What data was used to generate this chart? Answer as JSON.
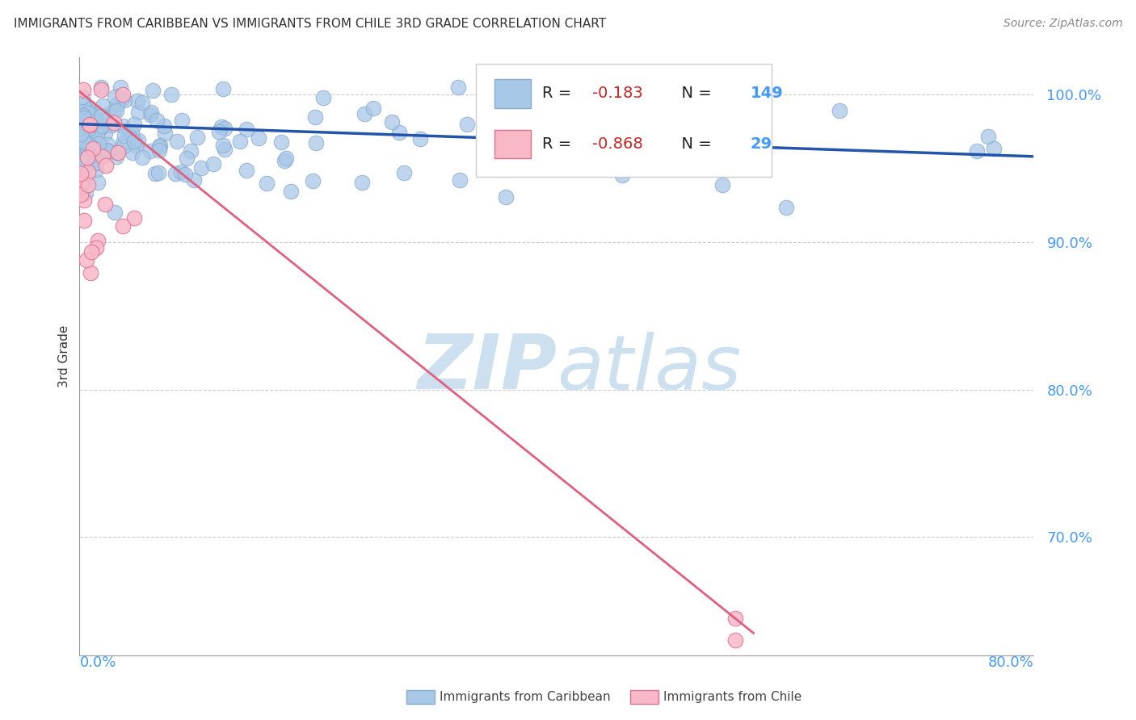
{
  "title": "IMMIGRANTS FROM CARIBBEAN VS IMMIGRANTS FROM CHILE 3RD GRADE CORRELATION CHART",
  "source": "Source: ZipAtlas.com",
  "ylabel": "3rd Grade",
  "yticks_labels": [
    "100.0%",
    "90.0%",
    "80.0%",
    "70.0%"
  ],
  "ytick_vals": [
    1.0,
    0.9,
    0.8,
    0.7
  ],
  "xlim": [
    0.0,
    0.8
  ],
  "ylim": [
    0.62,
    1.025
  ],
  "legend_blue_label": "Immigrants from Caribbean",
  "legend_pink_label": "Immigrants from Chile",
  "R_blue": -0.183,
  "N_blue": 149,
  "R_pink": -0.868,
  "N_pink": 29,
  "blue_color": "#a8c8e8",
  "blue_edge_color": "#88aacc",
  "blue_line_color": "#2255aa",
  "pink_color": "#f8b8c8",
  "pink_edge_color": "#e07090",
  "pink_line_color": "#e06080",
  "background_color": "#ffffff",
  "title_fontsize": 11,
  "scatter_size": 180,
  "blue_trend_x": [
    0.0,
    0.8
  ],
  "blue_trend_y": [
    0.98,
    0.958
  ],
  "pink_trend_x": [
    0.0,
    0.565
  ],
  "pink_trend_y": [
    1.002,
    0.635
  ],
  "watermark_zip_color": "#cde0f0",
  "watermark_atlas_color": "#cde0f0",
  "grid_color": "#cccccc",
  "tick_color": "#4499ff",
  "source_color": "#888888",
  "title_color": "#333333",
  "ylabel_color": "#333333"
}
